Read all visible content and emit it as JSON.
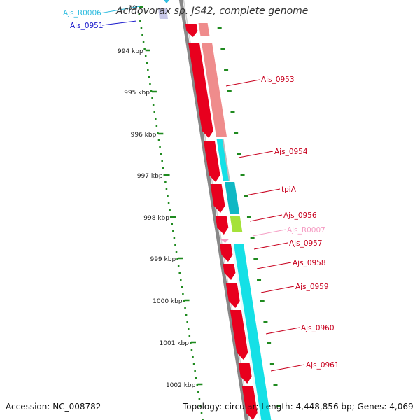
{
  "title": "Acidovorax sp. JS42, complete genome",
  "footer": {
    "accession": "Accession: NC_008782",
    "topology": "Topology: circular; Length: 4,448,856 bp; Genes: 4,069"
  },
  "scale": {
    "ticks": [
      "99",
      "994 kbp",
      "995 kbp",
      "996 kbp",
      "997 kbp",
      "998 kbp",
      "999 kbp",
      "1000 kbp",
      "1001 kbp",
      "1002 kbp"
    ]
  },
  "colors": {
    "cds": "#e8001e",
    "cds_light": "#ef8c8c",
    "cds_grey": "#bdbdbd",
    "cyan": "#15e0e6",
    "teal": "#10b8c4",
    "lime": "#a5e23a",
    "pink": "#f59cc3",
    "backbone": "#888888",
    "tick": "#1f8a1f",
    "label_red": "#c8001e",
    "label_cyan": "#31bde0",
    "label_blue": "#1a1acc",
    "label_pink": "#f59cc3"
  },
  "genes": [
    {
      "label": "Ajs_R0006",
      "color_key": "label_cyan"
    },
    {
      "label": "Ajs_0951",
      "color_key": "label_blue"
    },
    {
      "label": "Ajs_0953",
      "color_key": "label_red"
    },
    {
      "label": "Ajs_0954",
      "color_key": "label_red"
    },
    {
      "label": "tpiA",
      "color_key": "label_red"
    },
    {
      "label": "Ajs_0956",
      "color_key": "label_red"
    },
    {
      "label": "Ajs_R0007",
      "color_key": "label_pink"
    },
    {
      "label": "Ajs_0957",
      "color_key": "label_red"
    },
    {
      "label": "Ajs_0958",
      "color_key": "label_red"
    },
    {
      "label": "Ajs_0959",
      "color_key": "label_red"
    },
    {
      "label": "Ajs_0960",
      "color_key": "label_red"
    },
    {
      "label": "Ajs_0961",
      "color_key": "label_red"
    }
  ]
}
